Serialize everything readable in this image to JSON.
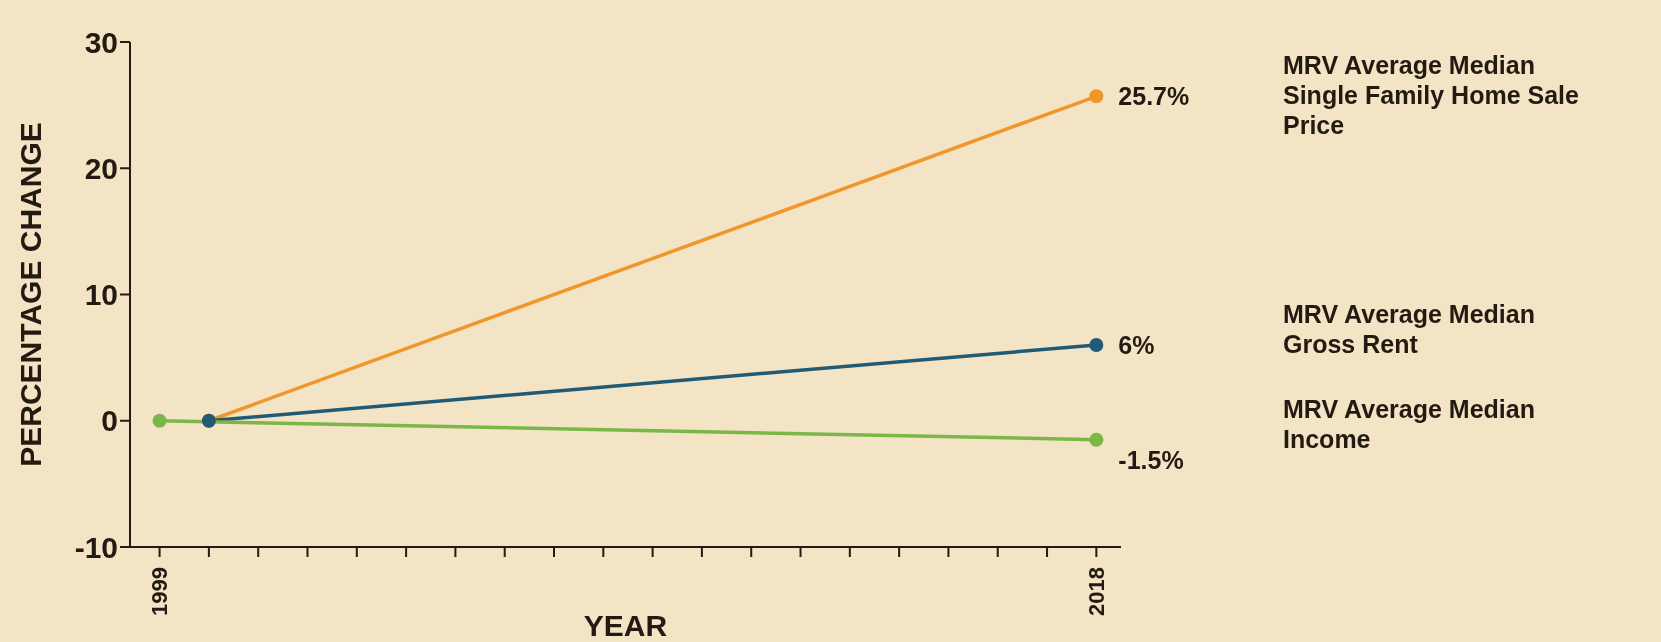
{
  "chart_data": {
    "type": "line",
    "xlabel": "YEAR",
    "ylabel": "PERCENTAGE CHANGE",
    "xlim": [
      1998.4,
      2018.5
    ],
    "ylim": [
      -10,
      30
    ],
    "yticks": [
      -10,
      0,
      10,
      20,
      30
    ],
    "xticks": [
      1999,
      {
        "value": 2000,
        "label": null
      },
      {
        "value": 2001,
        "label": null
      },
      {
        "value": 2002,
        "label": null
      },
      {
        "value": 2003,
        "label": null
      },
      {
        "value": 2004,
        "label": null
      },
      {
        "value": 2005,
        "label": null
      },
      {
        "value": 2006,
        "label": null
      },
      {
        "value": 2007,
        "label": null
      },
      {
        "value": 2008,
        "label": null
      },
      {
        "value": 2009,
        "label": null
      },
      {
        "value": 2010,
        "label": null
      },
      {
        "value": 2011,
        "label": null
      },
      {
        "value": 2012,
        "label": null
      },
      {
        "value": 2013,
        "label": null
      },
      {
        "value": 2014,
        "label": null
      },
      {
        "value": 2015,
        "label": null
      },
      {
        "value": 2016,
        "label": null
      },
      {
        "value": 2017,
        "label": null
      },
      2018
    ],
    "series": [
      {
        "name": "MRV Average Median Single Family Home Sale Price",
        "color": "#f0962a",
        "x": [
          2000,
          2018
        ],
        "values": [
          0,
          25.7
        ],
        "value_labels": [
          null,
          "25.7%"
        ]
      },
      {
        "name": "MRV Average Median Gross Rent",
        "color": "#215a75",
        "x": [
          2000,
          2018
        ],
        "values": [
          0,
          6
        ],
        "value_labels": [
          null,
          "6%"
        ]
      },
      {
        "name": "MRV Average Median Income",
        "color": "#7ab648",
        "x": [
          1999,
          2018
        ],
        "values": [
          0,
          -1.5
        ],
        "value_labels": [
          null,
          "-1.5%"
        ]
      }
    ],
    "grid": false,
    "legend": false,
    "marker": "circle",
    "line_style": "solid"
  }
}
